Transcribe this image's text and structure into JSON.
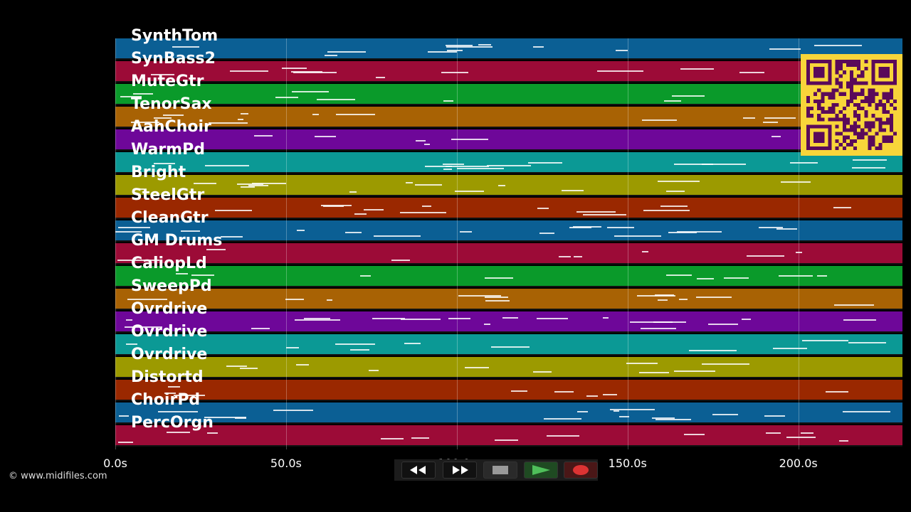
{
  "window": {
    "background": "#000000"
  },
  "tracks": [
    {
      "name": "SynthTom",
      "color": "#0b5f94"
    },
    {
      "name": "SynBass2",
      "color": "#9c0b37"
    },
    {
      "name": "MuteGtr",
      "color": "#0a9a2a"
    },
    {
      "name": "TenorSax",
      "color": "#a86204"
    },
    {
      "name": "AahChoir",
      "color": "#6e0799"
    },
    {
      "name": "WarmPd",
      "color": "#0b9995"
    },
    {
      "name": "Bright",
      "color": "#9c9a00"
    },
    {
      "name": "SteelGtr",
      "color": "#9a2800"
    },
    {
      "name": "CleanGtr",
      "color": "#0b5f94"
    },
    {
      "name": "GM Drums",
      "color": "#9c0b37"
    },
    {
      "name": "CaliopLd",
      "color": "#0a9a2a"
    },
    {
      "name": "SweepPd",
      "color": "#a86204"
    },
    {
      "name": "Ovrdrive",
      "color": "#6e0799"
    },
    {
      "name": "Ovrdrive",
      "color": "#0b9995"
    },
    {
      "name": "Ovrdrive",
      "color": "#9c9a00"
    },
    {
      "name": "Distortd",
      "color": "#9a2800"
    },
    {
      "name": "ChoirPd",
      "color": "#0b5f94"
    },
    {
      "name": "PercOrgn",
      "color": "#9c0b37"
    }
  ],
  "timeline": {
    "unit": "s",
    "ticks": [
      "0.0s",
      "50.0s",
      "100.0s",
      "150.0s",
      "200.0s"
    ],
    "tick_values": [
      0,
      50,
      100,
      150,
      200
    ],
    "max_seconds": 230.5
  },
  "transport": {
    "rewind_icon": "rewind-icon",
    "fastforward_icon": "fast-forward-icon",
    "stop_icon": "stop-icon",
    "play_icon": "play-icon",
    "record_icon": "record-icon"
  },
  "copyright": "© www.midifiles.com",
  "qr": {
    "icon": "qr-code-icon",
    "bg": "#f8d53a",
    "fg": "#5a0a5a"
  }
}
